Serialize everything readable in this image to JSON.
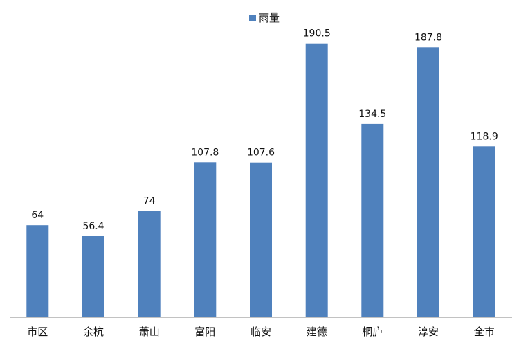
{
  "chart_data": {
    "type": "bar",
    "categories": [
      "市区",
      "余杭",
      "萧山",
      "富阳",
      "临安",
      "建德",
      "桐庐",
      "淳安",
      "全市"
    ],
    "series": [
      {
        "name": "雨量",
        "values": [
          64,
          56.4,
          74,
          107.8,
          107.6,
          190.5,
          134.5,
          187.8,
          118.9
        ]
      }
    ],
    "title": "",
    "xlabel": "",
    "ylabel": "",
    "ylim": [
      0,
      200
    ],
    "grid": false,
    "legend_position": "top-center",
    "colors": {
      "bar": "#4f81bd",
      "axis": "#868686",
      "text": "#111111"
    }
  }
}
